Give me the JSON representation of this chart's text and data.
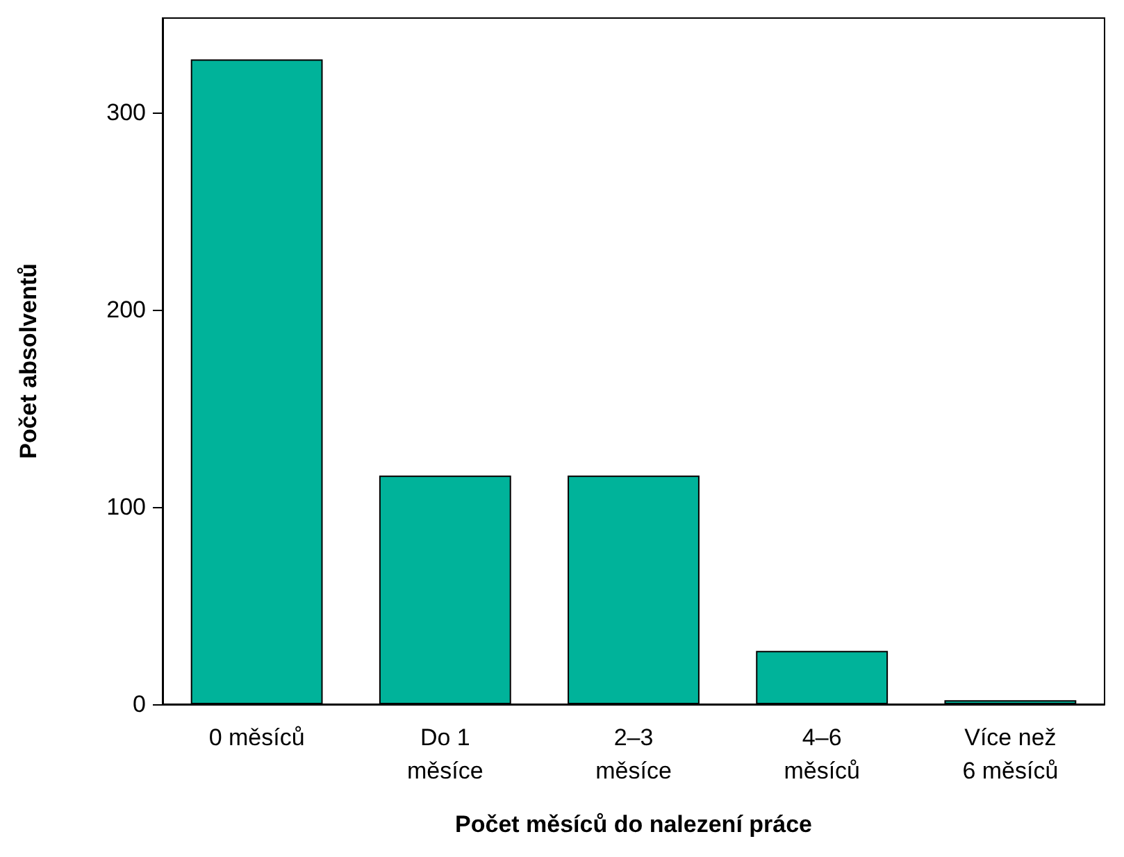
{
  "chart_data": {
    "type": "bar",
    "xlabel": "Počet měsíců do nalezení práce",
    "ylabel": "Počet absolventů",
    "categories": [
      "0 měsíců",
      "Do 1\nměsíce",
      "2–3\nměsíce",
      "4–6\nměsíců",
      "Více než\n6 měsíců"
    ],
    "values": [
      327,
      116,
      116,
      27,
      2
    ],
    "color": "#00b39a",
    "ylim": [
      0,
      348
    ],
    "yticks": [
      0,
      100,
      200,
      300
    ],
    "grid": false
  }
}
